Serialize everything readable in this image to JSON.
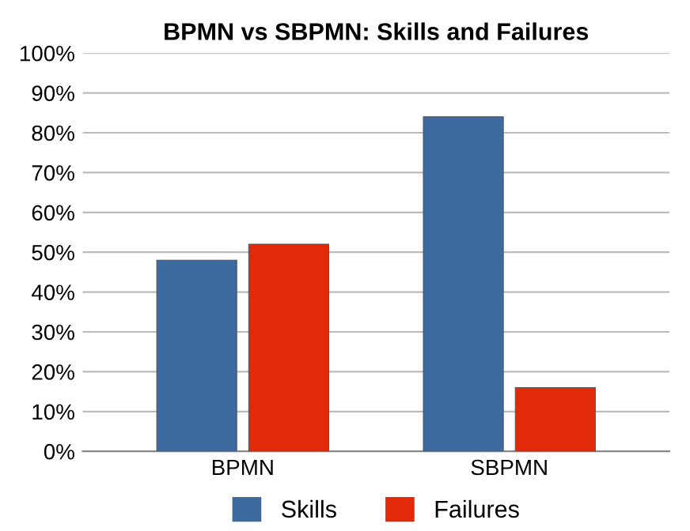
{
  "chart_data": {
    "type": "bar",
    "title": "BPMN vs SBPMN: Skills and Failures",
    "categories": [
      "BPMN",
      "SBPMN"
    ],
    "series": [
      {
        "name": "Skills",
        "color": "#3d6ba0",
        "values": [
          48,
          84
        ]
      },
      {
        "name": "Failures",
        "color": "#e22a0a",
        "values": [
          52,
          16
        ]
      }
    ],
    "ylim": [
      0,
      100
    ],
    "yticks": [
      {
        "value": 0,
        "label": "0%"
      },
      {
        "value": 10,
        "label": "10%"
      },
      {
        "value": 20,
        "label": "20%"
      },
      {
        "value": 30,
        "label": "30%"
      },
      {
        "value": 40,
        "label": "40%"
      },
      {
        "value": 50,
        "label": "50%"
      },
      {
        "value": 60,
        "label": "60%"
      },
      {
        "value": 70,
        "label": "70%"
      },
      {
        "value": 80,
        "label": "80%"
      },
      {
        "value": 90,
        "label": "90%"
      },
      {
        "value": 100,
        "label": "100%"
      }
    ],
    "grid": "y",
    "legend": "bottom"
  }
}
